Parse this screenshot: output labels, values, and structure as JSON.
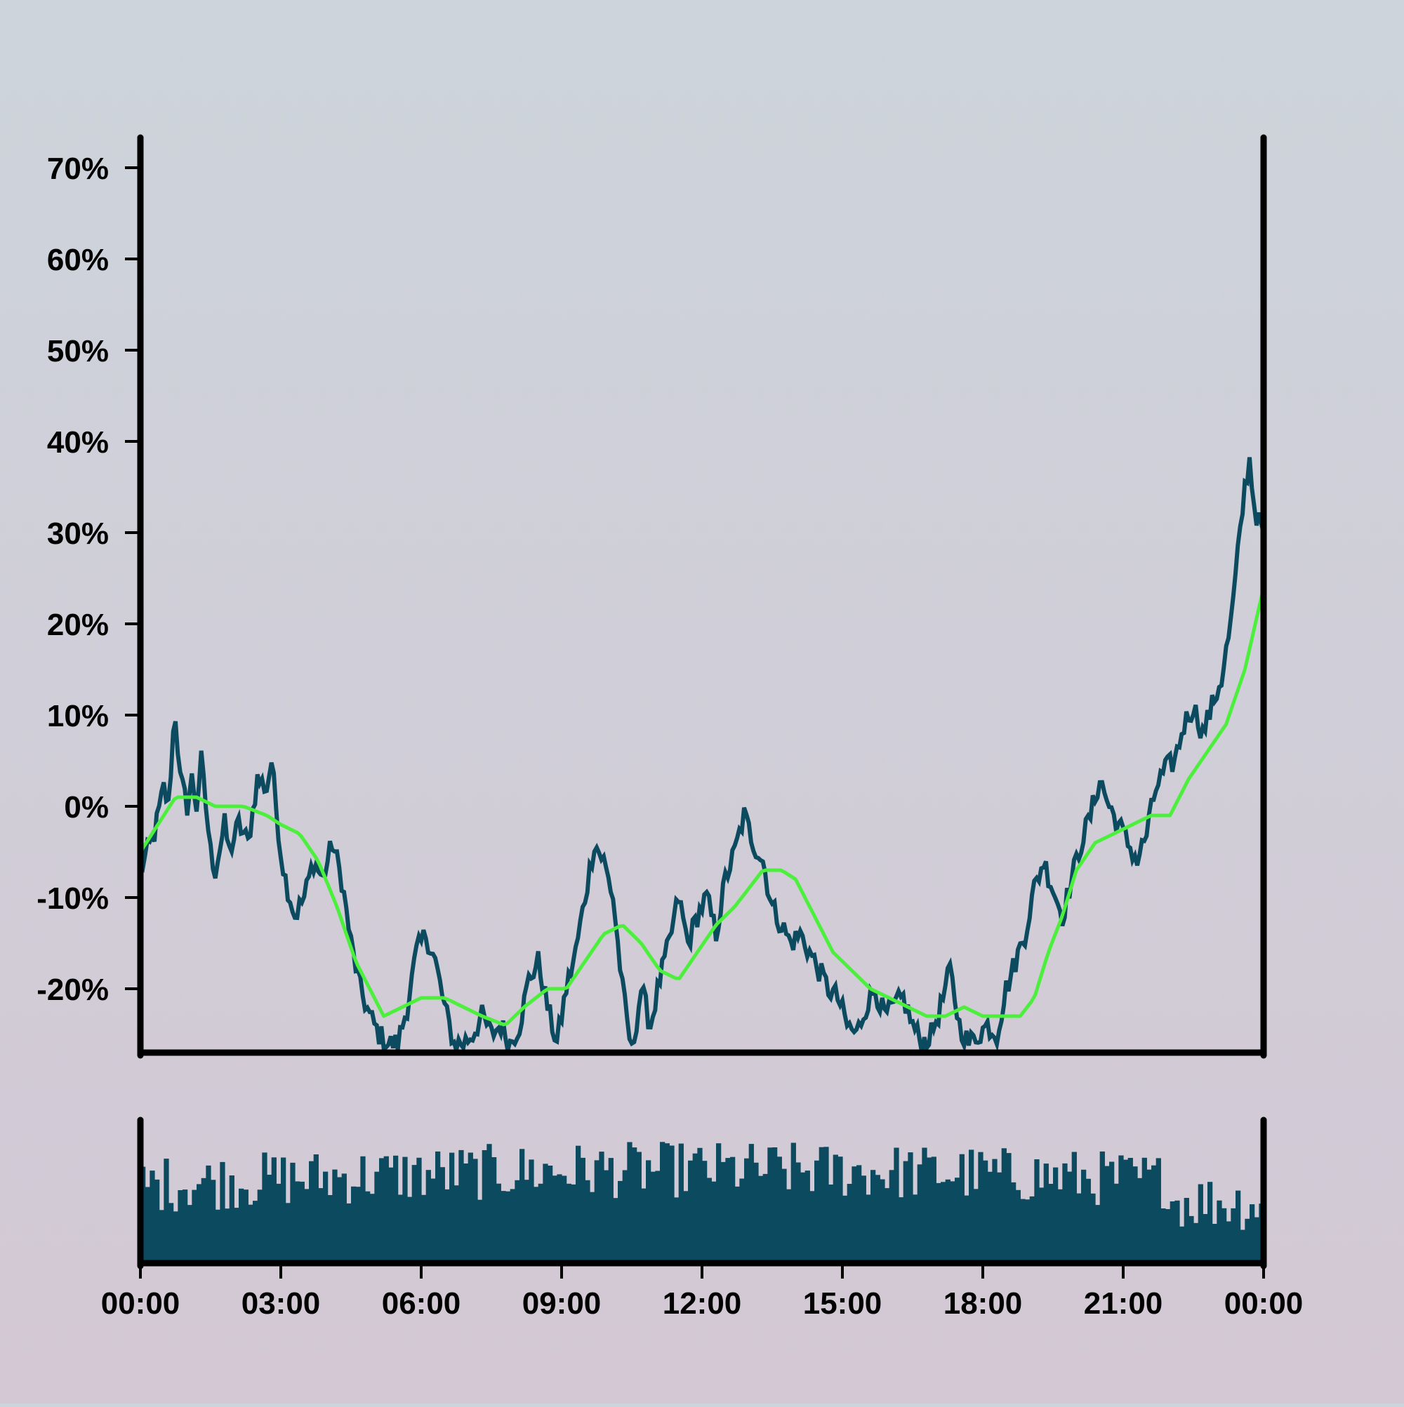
{
  "chart_data": {
    "type": "line",
    "colors": {
      "price": "#0b4a5f",
      "moving_average": "#4cf03c",
      "volume": "#0b4a5f",
      "axes": "#000000"
    },
    "x_tick_labels": [
      "00:00",
      "03:00",
      "06:00",
      "09:00",
      "12:00",
      "15:00",
      "18:00",
      "21:00",
      "00:00"
    ],
    "x_range_hours": [
      0,
      24
    ],
    "y_tick_labels": [
      "-20%",
      "-10%",
      "0%",
      "10%",
      "20%",
      "30%",
      "40%",
      "50%",
      "60%",
      "70%"
    ],
    "y_tick_values": [
      -20,
      -10,
      0,
      10,
      20,
      30,
      40,
      50,
      60,
      70
    ],
    "ylim": [
      -27,
      73
    ],
    "price_anchors_hours_percent": [
      [
        0.0,
        -7
      ],
      [
        0.3,
        -3
      ],
      [
        0.5,
        2
      ],
      [
        0.6,
        0
      ],
      [
        0.7,
        8
      ],
      [
        0.75,
        10
      ],
      [
        0.85,
        3
      ],
      [
        1.0,
        0
      ],
      [
        1.1,
        3
      ],
      [
        1.2,
        0
      ],
      [
        1.3,
        5
      ],
      [
        1.5,
        -5
      ],
      [
        1.6,
        -7
      ],
      [
        1.8,
        -2
      ],
      [
        1.9,
        -5
      ],
      [
        2.1,
        -2
      ],
      [
        2.3,
        -4
      ],
      [
        2.5,
        3
      ],
      [
        2.7,
        2
      ],
      [
        2.8,
        5
      ],
      [
        3.0,
        -5
      ],
      [
        3.1,
        -8
      ],
      [
        3.3,
        -12
      ],
      [
        3.5,
        -10
      ],
      [
        3.7,
        -6
      ],
      [
        3.9,
        -8
      ],
      [
        4.1,
        -4
      ],
      [
        4.3,
        -8
      ],
      [
        4.5,
        -15
      ],
      [
        4.7,
        -20
      ],
      [
        4.9,
        -23
      ],
      [
        5.1,
        -25
      ],
      [
        5.3,
        -26
      ],
      [
        5.5,
        -26
      ],
      [
        5.7,
        -22
      ],
      [
        5.9,
        -16
      ],
      [
        6.1,
        -14
      ],
      [
        6.3,
        -17
      ],
      [
        6.5,
        -22
      ],
      [
        6.7,
        -26
      ],
      [
        6.9,
        -26
      ],
      [
        7.1,
        -25
      ],
      [
        7.3,
        -23
      ],
      [
        7.5,
        -25
      ],
      [
        7.7,
        -24
      ],
      [
        7.9,
        -26
      ],
      [
        8.1,
        -24
      ],
      [
        8.3,
        -19
      ],
      [
        8.5,
        -17
      ],
      [
        8.7,
        -22
      ],
      [
        8.9,
        -26
      ],
      [
        9.1,
        -20
      ],
      [
        9.3,
        -16
      ],
      [
        9.5,
        -10
      ],
      [
        9.7,
        -4
      ],
      [
        9.9,
        -6
      ],
      [
        10.1,
        -10
      ],
      [
        10.3,
        -20
      ],
      [
        10.5,
        -27
      ],
      [
        10.7,
        -20
      ],
      [
        10.9,
        -24
      ],
      [
        11.1,
        -19
      ],
      [
        11.3,
        -15
      ],
      [
        11.5,
        -10
      ],
      [
        11.7,
        -15
      ],
      [
        11.9,
        -12
      ],
      [
        12.1,
        -10
      ],
      [
        12.3,
        -14
      ],
      [
        12.5,
        -8
      ],
      [
        12.7,
        -5
      ],
      [
        12.9,
        -1
      ],
      [
        13.1,
        -4
      ],
      [
        13.3,
        -6
      ],
      [
        13.5,
        -11
      ],
      [
        13.7,
        -13
      ],
      [
        13.9,
        -15
      ],
      [
        14.1,
        -14
      ],
      [
        14.3,
        -16
      ],
      [
        14.5,
        -18
      ],
      [
        14.7,
        -20
      ],
      [
        14.9,
        -21
      ],
      [
        15.1,
        -24
      ],
      [
        15.3,
        -25
      ],
      [
        15.5,
        -22
      ],
      [
        15.7,
        -20
      ],
      [
        15.9,
        -23
      ],
      [
        16.1,
        -22
      ],
      [
        16.3,
        -21
      ],
      [
        16.5,
        -24
      ],
      [
        16.7,
        -26
      ],
      [
        16.9,
        -25
      ],
      [
        17.1,
        -22
      ],
      [
        17.3,
        -18
      ],
      [
        17.5,
        -24
      ],
      [
        17.7,
        -26
      ],
      [
        17.9,
        -25
      ],
      [
        18.1,
        -24
      ],
      [
        18.3,
        -25
      ],
      [
        18.5,
        -20
      ],
      [
        18.7,
        -17
      ],
      [
        18.9,
        -14
      ],
      [
        19.1,
        -9
      ],
      [
        19.3,
        -6
      ],
      [
        19.5,
        -9
      ],
      [
        19.7,
        -12
      ],
      [
        19.9,
        -8
      ],
      [
        20.1,
        -4
      ],
      [
        20.3,
        -1
      ],
      [
        20.5,
        3
      ],
      [
        20.7,
        0
      ],
      [
        20.9,
        -2
      ],
      [
        21.1,
        -4
      ],
      [
        21.3,
        -6
      ],
      [
        21.5,
        -3
      ],
      [
        21.7,
        2
      ],
      [
        21.9,
        4
      ],
      [
        22.1,
        5
      ],
      [
        22.3,
        9
      ],
      [
        22.5,
        11
      ],
      [
        22.7,
        8
      ],
      [
        22.9,
        11
      ],
      [
        23.1,
        14
      ],
      [
        23.3,
        20
      ],
      [
        23.5,
        30
      ],
      [
        23.6,
        35
      ],
      [
        23.7,
        38
      ],
      [
        23.8,
        33
      ],
      [
        23.9,
        31
      ],
      [
        24.0,
        31
      ]
    ],
    "moving_average_anchors_hours_percent": [
      [
        0.0,
        -5
      ],
      [
        0.5,
        -1
      ],
      [
        0.75,
        1
      ],
      [
        1.2,
        1
      ],
      [
        1.6,
        0
      ],
      [
        2.2,
        0
      ],
      [
        2.7,
        -1
      ],
      [
        3.0,
        -2
      ],
      [
        3.4,
        -3
      ],
      [
        3.8,
        -6
      ],
      [
        4.2,
        -11
      ],
      [
        4.6,
        -17
      ],
      [
        4.9,
        -20
      ],
      [
        5.2,
        -23
      ],
      [
        5.6,
        -22
      ],
      [
        6.0,
        -21
      ],
      [
        6.5,
        -21
      ],
      [
        6.9,
        -22
      ],
      [
        7.3,
        -23
      ],
      [
        7.8,
        -24
      ],
      [
        8.2,
        -22
      ],
      [
        8.7,
        -20
      ],
      [
        9.1,
        -20
      ],
      [
        9.5,
        -17
      ],
      [
        9.9,
        -14
      ],
      [
        10.3,
        -13
      ],
      [
        10.7,
        -15
      ],
      [
        11.1,
        -18
      ],
      [
        11.5,
        -19
      ],
      [
        11.9,
        -16
      ],
      [
        12.3,
        -13
      ],
      [
        12.7,
        -11
      ],
      [
        13.0,
        -9
      ],
      [
        13.3,
        -7
      ],
      [
        13.7,
        -7
      ],
      [
        14.0,
        -8
      ],
      [
        14.4,
        -12
      ],
      [
        14.8,
        -16
      ],
      [
        15.2,
        -18
      ],
      [
        15.6,
        -20
      ],
      [
        16.0,
        -21
      ],
      [
        16.4,
        -22
      ],
      [
        16.8,
        -23
      ],
      [
        17.2,
        -23
      ],
      [
        17.6,
        -22
      ],
      [
        18.0,
        -23
      ],
      [
        18.4,
        -23
      ],
      [
        18.8,
        -23
      ],
      [
        19.1,
        -21
      ],
      [
        19.4,
        -16
      ],
      [
        19.7,
        -12
      ],
      [
        20.0,
        -7
      ],
      [
        20.4,
        -4
      ],
      [
        20.8,
        -3
      ],
      [
        21.2,
        -2
      ],
      [
        21.6,
        -1
      ],
      [
        22.0,
        -1
      ],
      [
        22.4,
        3
      ],
      [
        22.8,
        6
      ],
      [
        23.2,
        9
      ],
      [
        23.6,
        15
      ],
      [
        24.0,
        24
      ]
    ],
    "volume_relative_level": {
      "mean": 0.62,
      "min": 0.0,
      "max": 1.0
    }
  }
}
